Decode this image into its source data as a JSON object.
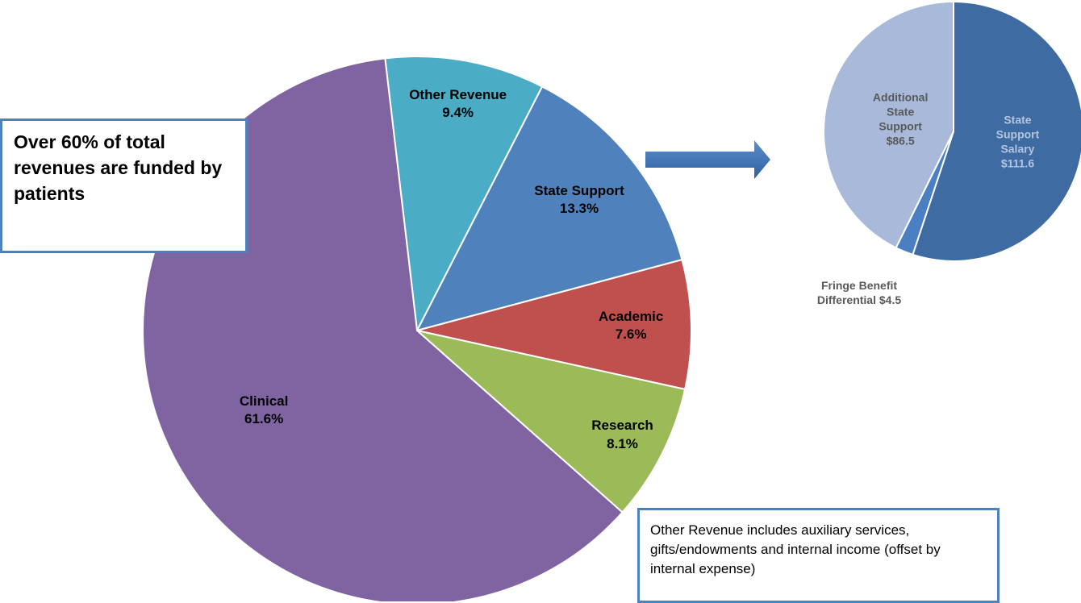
{
  "chart_data": [
    {
      "type": "pie",
      "categories": [
        "Other Revenue",
        "State Support",
        "Academic",
        "Research",
        "Clinical"
      ],
      "values": [
        9.4,
        13.3,
        7.6,
        8.1,
        61.6
      ],
      "value_labels": [
        "9.4%",
        "13.3%",
        "7.6%",
        "8.1%",
        "61.6%"
      ],
      "colors": [
        "#4bacc6",
        "#4f81bd",
        "#c0504d",
        "#9bbb59",
        "#8064a2"
      ]
    },
    {
      "type": "pie",
      "categories": [
        "State Support Salary",
        "Fringe Benefit Differential",
        "Additional State Support"
      ],
      "values": [
        111.6,
        4.5,
        86.5
      ],
      "value_labels": [
        "$111.6",
        "$4.5",
        "$86.5"
      ],
      "colors": [
        "#3e6ba1",
        "#4a7fc4",
        "#a9b9d9"
      ]
    }
  ],
  "annotations": {
    "callout": "Over 60% of total revenues are funded by patients",
    "note": "Other Revenue includes auxiliary services, gifts/endowments and internal income (offset by internal expense)"
  }
}
